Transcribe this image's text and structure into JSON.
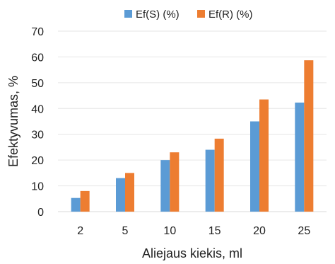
{
  "chart_data": {
    "type": "bar",
    "title": "",
    "xlabel": "Aliejaus kiekis, ml",
    "ylabel": "Efektyvumas, %",
    "categories": [
      "2",
      "5",
      "10",
      "15",
      "20",
      "25"
    ],
    "series": [
      {
        "name": "Ef(S) (%)",
        "color": "#5b9bd5",
        "values": [
          5.3,
          13,
          20,
          24,
          35,
          42.3
        ]
      },
      {
        "name": "Ef(R) (%)",
        "color": "#ed7d31",
        "values": [
          8,
          15,
          23,
          28.3,
          43.5,
          58.7
        ]
      }
    ],
    "ylim": [
      0,
      70
    ],
    "yticks": [
      0,
      10,
      20,
      30,
      40,
      50,
      60,
      70
    ],
    "grid": true,
    "legend_position": "top-center"
  }
}
